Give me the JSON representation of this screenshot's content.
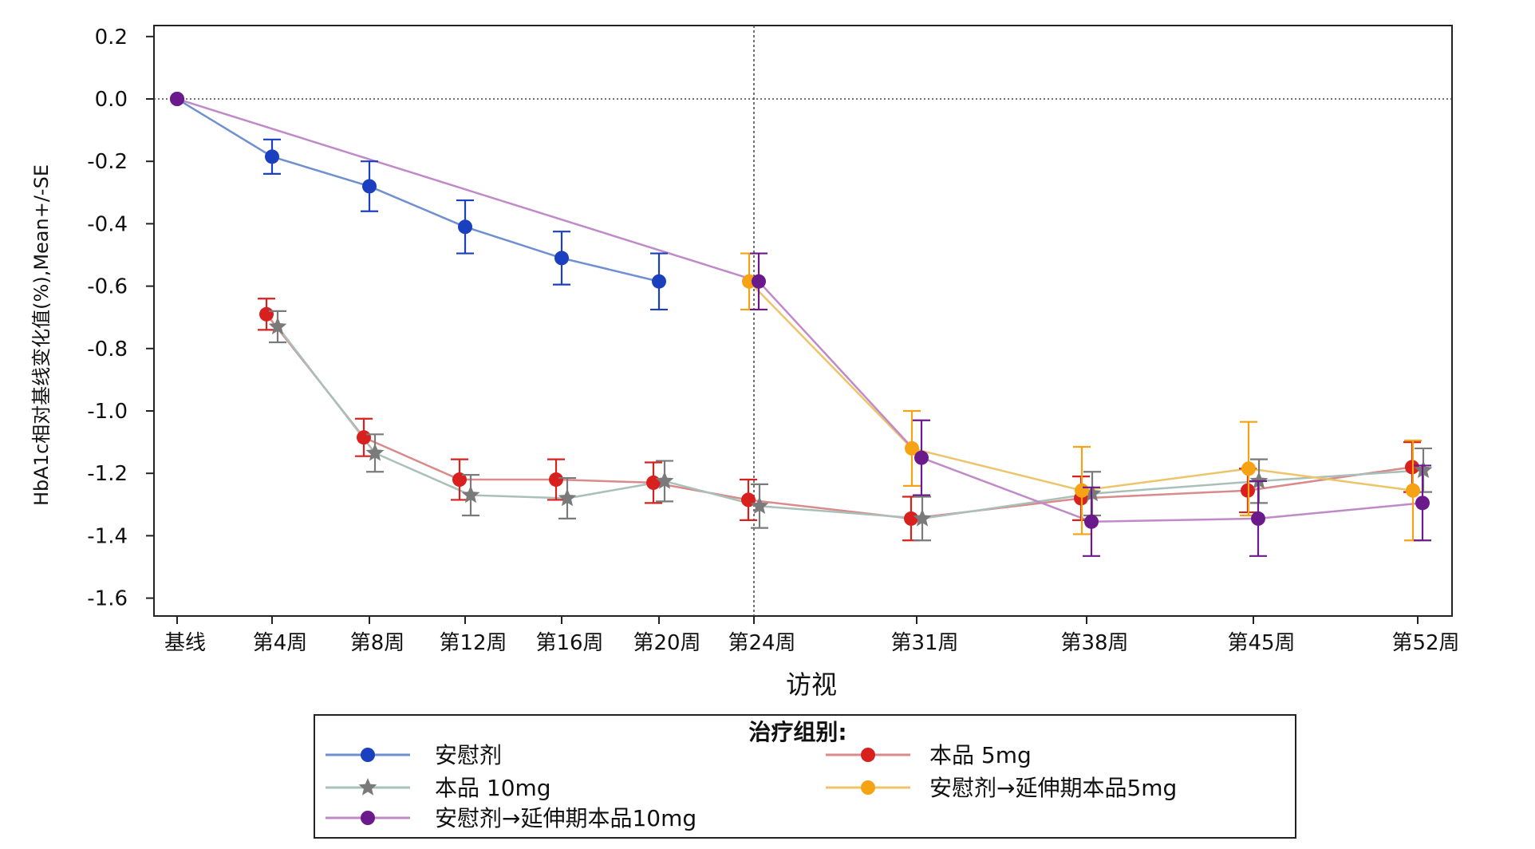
{
  "chart_data": {
    "type": "line",
    "xlabel": "访视",
    "ylabel": "HbA1c相对基线变化值(%),Mean+/-SE",
    "categories": [
      "基线",
      "第4周",
      "第8周",
      "第12周",
      "第16周",
      "第20周",
      "第24周",
      "第31周",
      "第38周",
      "第45周",
      "第52周"
    ],
    "x_weeks": [
      0,
      4,
      8,
      12,
      16,
      20,
      24,
      31,
      38,
      45,
      52
    ],
    "ylim": [
      -1.65,
      0.25
    ],
    "yticks": [
      0.2,
      0.0,
      -0.2,
      -0.4,
      -0.6,
      -0.8,
      -1.0,
      -1.2,
      -1.4,
      -1.6
    ],
    "ytick_labels": [
      "0.2",
      "0.0",
      "-0.2",
      "-0.4",
      "-0.6",
      "-0.8",
      "-1.0",
      "-1.2",
      "-1.4",
      "-1.6"
    ],
    "reference_lines": {
      "y": 0.0,
      "x_week": 24
    },
    "legend_title": "治疗组别:",
    "legend_position": "bottom",
    "series": [
      {
        "name": "安慰剂",
        "color": "#1a3fbf",
        "line_color": "#6f8fd0",
        "marker": "circle",
        "x": [
          0,
          4,
          8,
          12,
          16,
          20
        ],
        "y": [
          0.0,
          -0.185,
          -0.28,
          -0.41,
          -0.51,
          -0.585
        ],
        "se": [
          0.0,
          0.055,
          0.08,
          0.085,
          0.085,
          0.09
        ]
      },
      {
        "name": "本品 5mg",
        "color": "#d8201e",
        "line_color": "#d98a8a",
        "marker": "circle",
        "x": [
          4,
          8,
          12,
          16,
          20,
          24,
          31,
          38,
          45,
          52
        ],
        "y": [
          -0.69,
          -1.085,
          -1.22,
          -1.22,
          -1.23,
          -1.285,
          -1.345,
          -1.28,
          -1.255,
          -1.18
        ],
        "se": [
          0.05,
          0.06,
          0.065,
          0.065,
          0.065,
          0.065,
          0.07,
          0.07,
          0.07,
          0.08
        ]
      },
      {
        "name": "本品 10mg",
        "color": "#7a7a7a",
        "line_color": "#a8c0b8",
        "marker": "star",
        "x": [
          4,
          8,
          12,
          16,
          20,
          24,
          31,
          38,
          45,
          52
        ],
        "y": [
          -0.73,
          -1.135,
          -1.27,
          -1.28,
          -1.225,
          -1.305,
          -1.345,
          -1.265,
          -1.225,
          -1.19
        ],
        "se": [
          0.05,
          0.06,
          0.065,
          0.065,
          0.065,
          0.07,
          0.07,
          0.07,
          0.07,
          0.07
        ]
      },
      {
        "name": "安慰剂→延伸期本品5mg",
        "color": "#f5a315",
        "line_color": "#ecc46a",
        "marker": "circle",
        "x": [
          24,
          31,
          38,
          45,
          52
        ],
        "y": [
          -0.585,
          -1.12,
          -1.255,
          -1.185,
          -1.255
        ],
        "se": [
          0.09,
          0.12,
          0.14,
          0.15,
          0.16
        ]
      },
      {
        "name": "安慰剂→延伸期本品10mg",
        "color": "#6a1a8a",
        "line_color": "#c08ac8",
        "marker": "circle",
        "x": [
          0,
          24,
          31,
          38,
          45,
          52
        ],
        "y": [
          0.0,
          -0.585,
          -1.15,
          -1.355,
          -1.345,
          -1.295
        ],
        "se": [
          0.0,
          0.09,
          0.12,
          0.11,
          0.12,
          0.12
        ]
      }
    ]
  }
}
